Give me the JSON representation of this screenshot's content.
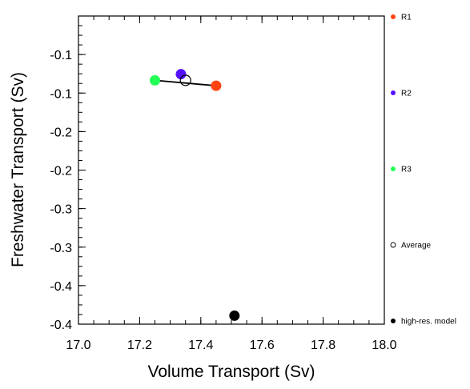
{
  "chart_data": {
    "type": "scatter",
    "xlabel": "Volume Transport (Sv)",
    "ylabel": "Freshwater Transport (Sv)",
    "xlim": [
      17.0,
      18.0
    ],
    "ylim": [
      -0.4,
      0.0
    ],
    "x_ticks": [
      17.0,
      17.2,
      17.4,
      17.6,
      17.8,
      18.0
    ],
    "x_tick_labels": [
      "17.0",
      "17.2",
      "17.4",
      "17.6",
      "17.8",
      "18.0"
    ],
    "y_ticks": [
      -0.05,
      -0.1,
      -0.15,
      -0.2,
      -0.25,
      -0.3,
      -0.35,
      -0.4
    ],
    "y_tick_labels": [
      "-0.1",
      "-0.1",
      "-0.2",
      "-0.2",
      "-0.3",
      "-0.3",
      "-0.4",
      "-0.4"
    ],
    "grid": false,
    "legend_placement": "right",
    "series": [
      {
        "name": "R1",
        "x": 17.45,
        "y": -0.0905,
        "color": "#ff4411",
        "marker": "filled-circle"
      },
      {
        "name": "R2",
        "x": 17.335,
        "y": -0.0755,
        "color": "#5511ff",
        "marker": "filled-circle"
      },
      {
        "name": "R3",
        "x": 17.25,
        "y": -0.0835,
        "color": "#22ff55",
        "marker": "filled-circle"
      },
      {
        "name": "Average",
        "x": 17.35,
        "y": -0.0835,
        "color": "#000000",
        "marker": "hollow-circle"
      },
      {
        "name": "high-res. model",
        "x": 17.51,
        "y": -0.389,
        "color": "#000000",
        "marker": "filled-circle"
      }
    ],
    "lines": [
      {
        "points": [
          [
            17.25,
            -0.0835
          ],
          [
            17.45,
            -0.0905
          ]
        ],
        "color": "#000000"
      }
    ]
  }
}
